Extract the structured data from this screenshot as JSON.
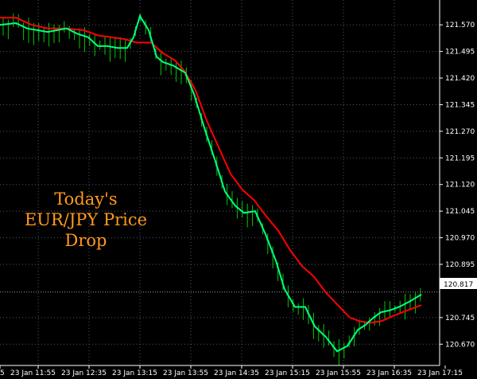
{
  "chart_data": {
    "type": "line",
    "annotation": [
      "Today's",
      "EUR/JPY Price",
      "Drop"
    ],
    "current_price": 120.817,
    "ylim": [
      120.61,
      121.64
    ],
    "x_ticks": [
      "5",
      "23 Jan 11:55",
      "23 Jan 12:35",
      "23 Jan 13:15",
      "23 Jan 13:55",
      "23 Jan 14:35",
      "23 Jan 15:15",
      "23 Jan 15:55",
      "23 Jan 16:35",
      "23 Jan 17:15"
    ],
    "y_ticks": [
      121.57,
      121.495,
      121.42,
      121.345,
      121.27,
      121.195,
      121.12,
      121.045,
      120.97,
      120.895,
      120.817,
      120.745,
      120.67
    ],
    "grid": true,
    "colors": {
      "background": "#000000",
      "bars": "#00c800",
      "fast_line": "#00ff7f",
      "slow_line": "#ff0000",
      "grid": "#4a5a6a",
      "price_line": "#a0a0a0",
      "text": "#ffffff",
      "annotation": "#ff9a1c"
    },
    "series": [
      {
        "x": [
          0,
          20,
          34,
          60,
          84,
          97,
          111,
          123,
          135,
          148,
          160,
          168,
          176,
          187,
          197,
          205,
          218,
          233,
          244,
          257,
          271,
          283,
          296,
          307,
          321,
          334,
          347,
          358,
          371,
          384,
          396,
          410,
          424,
          437,
          450,
          460,
          470,
          479,
          490,
          502,
          515,
          530
        ],
        "values": [
          121.57,
          121.575,
          121.56,
          121.55,
          121.56,
          121.545,
          121.535,
          121.51,
          121.51,
          121.505,
          121.505,
          121.535,
          121.595,
          121.555,
          121.48,
          121.465,
          121.455,
          121.435,
          121.375,
          121.28,
          121.185,
          121.1,
          121.06,
          121.04,
          121.045,
          120.98,
          120.905,
          120.825,
          120.775,
          120.775,
          120.72,
          120.69,
          120.65,
          120.665,
          120.71,
          120.725,
          120.745,
          120.76,
          120.765,
          120.775,
          120.79,
          120.81
        ]
      },
      {
        "x": [
          0,
          20,
          40,
          60,
          84,
          105,
          124,
          140,
          156,
          172,
          190,
          205,
          220,
          232,
          246,
          260,
          275,
          290,
          305,
          320,
          335,
          350,
          365,
          380,
          395,
          410,
          425,
          440,
          452,
          465,
          480,
          495,
          512,
          530
        ],
        "values": [
          121.59,
          121.59,
          121.57,
          121.56,
          121.56,
          121.555,
          121.54,
          121.535,
          121.53,
          121.52,
          121.52,
          121.49,
          121.47,
          121.44,
          121.385,
          121.3,
          121.225,
          121.15,
          121.105,
          121.075,
          121.03,
          120.99,
          120.935,
          120.89,
          120.86,
          120.815,
          120.78,
          120.745,
          120.735,
          120.73,
          120.735,
          120.75,
          120.765,
          120.78
        ]
      }
    ]
  }
}
